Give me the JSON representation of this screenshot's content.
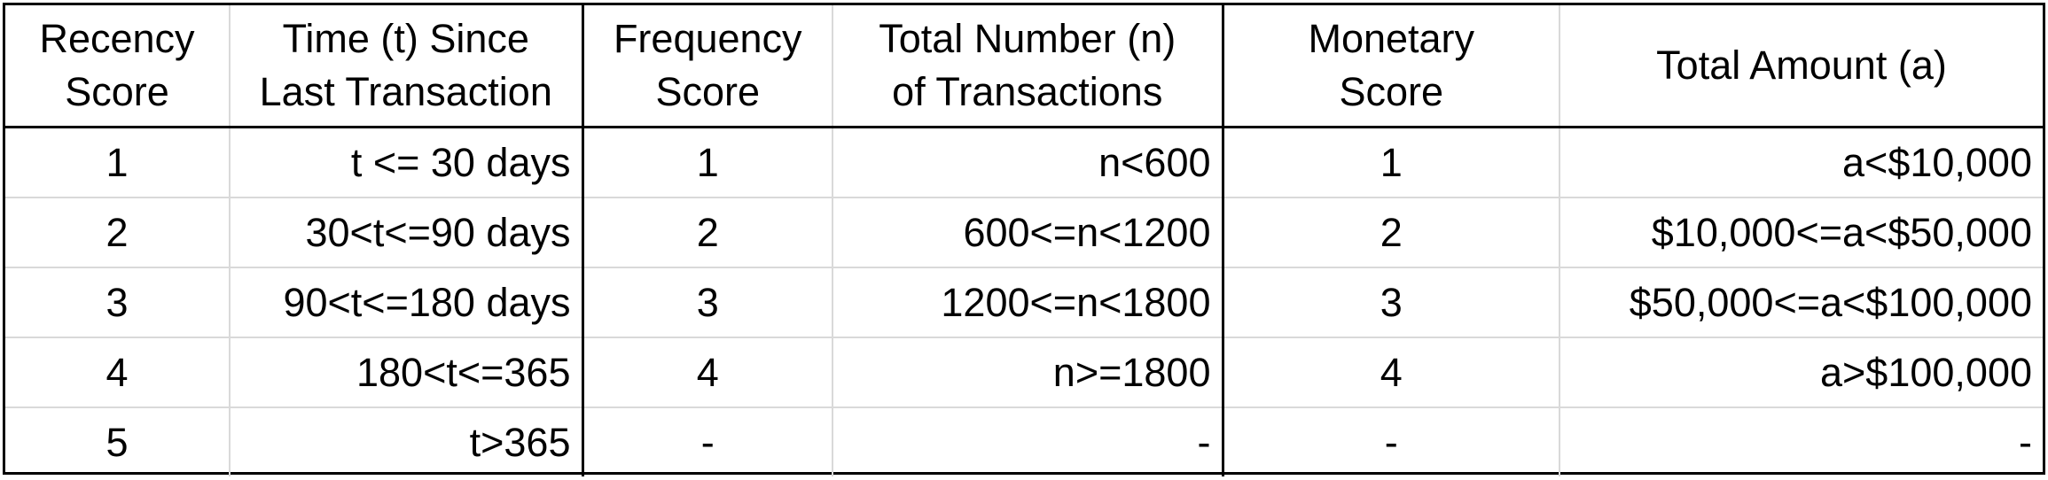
{
  "table": {
    "headers": [
      {
        "line1": "Recency",
        "line2": "Score"
      },
      {
        "line1": "Time (t) Since",
        "line2": "Last Transaction"
      },
      {
        "line1": "Frequency",
        "line2": "Score"
      },
      {
        "line1": "Total Number (n)",
        "line2": "of Transactions"
      },
      {
        "line1": "Monetary",
        "line2": "Score"
      },
      {
        "line1": "Total Amount (a)",
        "line2": ""
      }
    ],
    "rows": [
      [
        "1",
        "t <= 30 days",
        "1",
        "n<600",
        "1",
        "a<$10,000"
      ],
      [
        "2",
        "30<t<=90 days",
        "2",
        "600<=n<1200",
        "2",
        "$10,000<=a<$50,000"
      ],
      [
        "3",
        "90<t<=180 days",
        "3",
        "1200<=n<1800",
        "3",
        "$50,000<=a<$100,000"
      ],
      [
        "4",
        "180<t<=365",
        "4",
        "n>=1800",
        "4",
        "a>$100,000"
      ],
      [
        "5",
        "t>365",
        "-",
        "-",
        "-",
        "-"
      ]
    ]
  }
}
